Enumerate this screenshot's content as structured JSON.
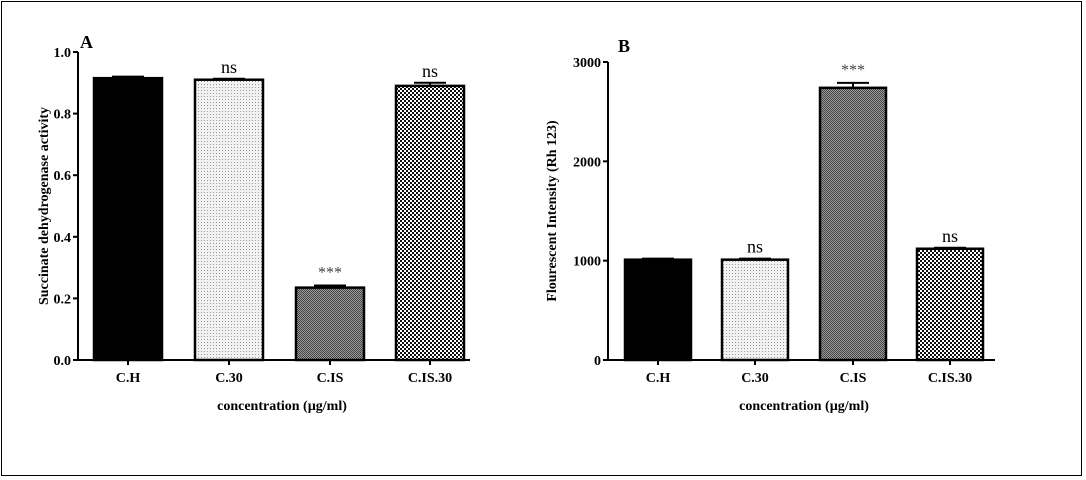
{
  "chart_data": [
    {
      "type": "bar",
      "panel_label": "A",
      "categories": [
        "C.H",
        "C.30",
        "C.IS",
        "C.IS.30"
      ],
      "values": [
        0.915,
        0.91,
        0.235,
        0.89
      ],
      "errors": [
        0.005,
        0.003,
        0.007,
        0.01
      ],
      "annotations": [
        "",
        "ns",
        "***",
        "ns"
      ],
      "fills": [
        "solid-black",
        "light-dots",
        "dense-gray-checker",
        "checker"
      ],
      "xlabel": "concentration (µg/ml)",
      "ylabel": "Succinate dehydrogenase activity",
      "ylim": [
        0,
        1.0
      ],
      "yticks": [
        "0.0",
        "0.2",
        "0.4",
        "0.6",
        "0.8",
        "1.0"
      ],
      "grid": false
    },
    {
      "type": "bar",
      "panel_label": "B",
      "categories": [
        "C.H",
        "C.30",
        "C.IS",
        "C.IS.30"
      ],
      "values": [
        1010,
        1010,
        2740,
        1120
      ],
      "errors": [
        10,
        10,
        50,
        10
      ],
      "annotations": [
        "",
        "ns",
        "***",
        "ns"
      ],
      "fills": [
        "solid-black",
        "light-dots",
        "dense-gray-checker",
        "checker"
      ],
      "xlabel": "concentration (µg/ml)",
      "ylabel": "Flourescent Intensity (Rh 123)",
      "ylim": [
        0,
        3000
      ],
      "yticks": [
        "0",
        "1000",
        "2000",
        "3000"
      ],
      "grid": false
    }
  ]
}
